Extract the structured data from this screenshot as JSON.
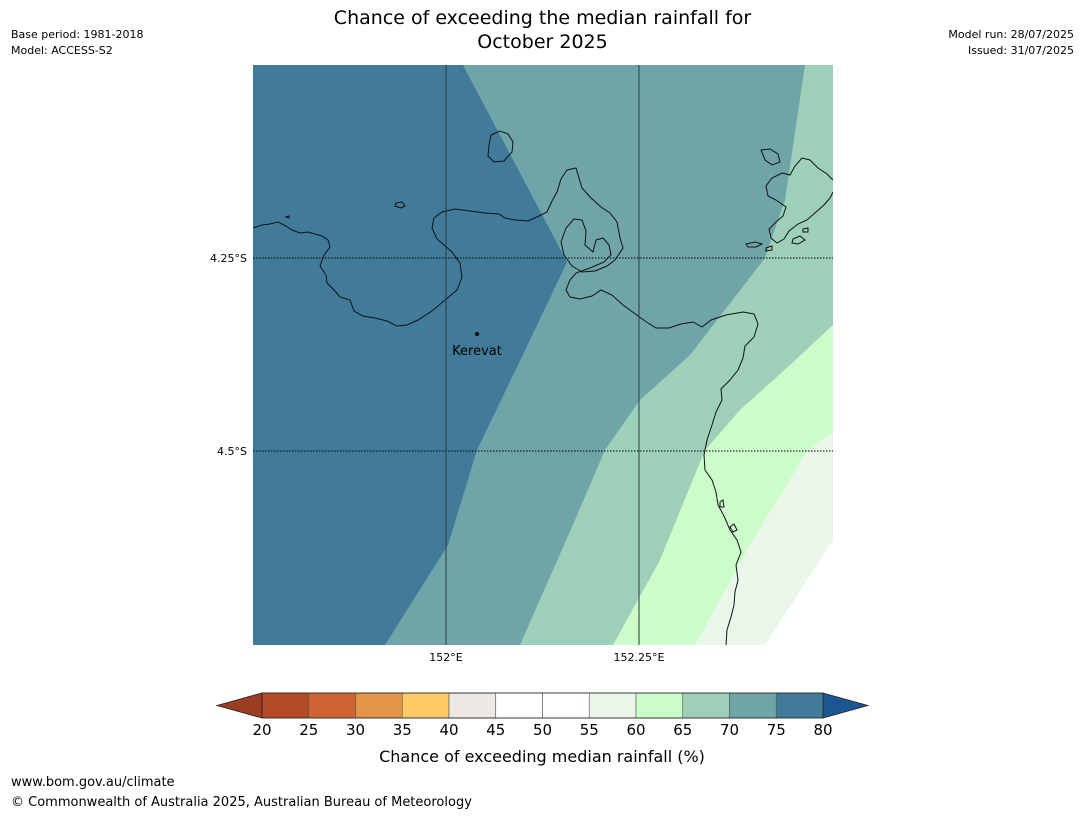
{
  "title_line1": "Chance of exceeding the median rainfall for",
  "title_line2": "October 2025",
  "base_period": "Base period: 1981-2018",
  "model": "Model: ACCESS-S2",
  "model_run": "Model run: 28/07/2025",
  "issued": "Issued: 31/07/2025",
  "map": {
    "place_name": "Kerevat",
    "lat_labels": [
      "4.25°S",
      "4.5°S"
    ],
    "lon_labels": [
      "152°E",
      "152.25°E"
    ]
  },
  "colorbar": {
    "title": "Chance of exceeding median rainfall (%)",
    "ticks": [
      "20",
      "25",
      "30",
      "35",
      "40",
      "45",
      "50",
      "55",
      "60",
      "65",
      "70",
      "75",
      "80"
    ],
    "under_color": "#9a3d22",
    "over_color": "#1b5690",
    "colors": [
      "#b54a26",
      "#cf6432",
      "#e49447",
      "#fecb67",
      "#ece8e4",
      "#ffffff",
      "#ffffff",
      "#e9f6e9",
      "#ccfcca",
      "#9ed0b9",
      "#6fa5a8",
      "#417b99"
    ]
  },
  "footer_url": "www.bom.gov.au/climate",
  "footer_copyright": "© Commonwealth of Australia 2025, Australian Bureau of Meteorology"
}
